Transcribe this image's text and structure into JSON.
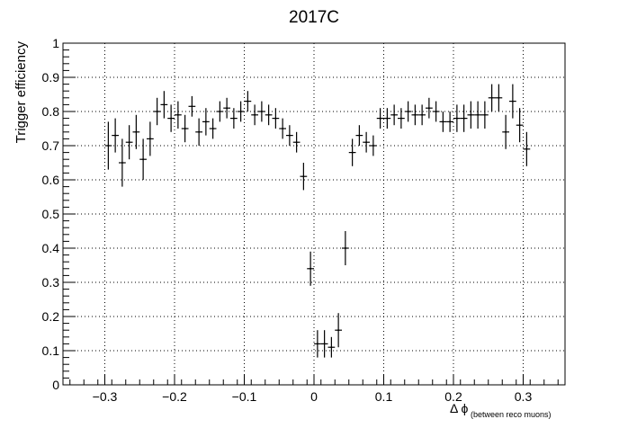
{
  "chart_data": {
    "type": "scatter",
    "title": "2017C",
    "xlabel": "Δ ϕ",
    "xlabel_sub": "(between reco muons)",
    "ylabel": "Trigger efficiency",
    "xlim": [
      -0.36,
      0.36
    ],
    "ylim": [
      0,
      1
    ],
    "grid": true,
    "x_ticks": [
      -0.3,
      -0.2,
      -0.1,
      0,
      0.1,
      0.2,
      0.3
    ],
    "x_tick_labels": [
      "−0.3",
      "−0.2",
      "−0.1",
      "0",
      "0.1",
      "0.2",
      "0.3"
    ],
    "y_ticks": [
      0,
      0.1,
      0.2,
      0.3,
      0.4,
      0.5,
      0.6,
      0.7,
      0.8,
      0.9,
      1
    ],
    "y_tick_labels": [
      "0",
      "0.1",
      "0.2",
      "0.3",
      "0.4",
      "0.5",
      "0.6",
      "0.7",
      "0.8",
      "0.9",
      "1"
    ],
    "bin_half_width": 0.005,
    "points": [
      {
        "x": -0.295,
        "y": 0.7,
        "err": 0.07
      },
      {
        "x": -0.285,
        "y": 0.73,
        "err": 0.05
      },
      {
        "x": -0.275,
        "y": 0.65,
        "err": 0.07
      },
      {
        "x": -0.265,
        "y": 0.71,
        "err": 0.05
      },
      {
        "x": -0.255,
        "y": 0.74,
        "err": 0.05
      },
      {
        "x": -0.245,
        "y": 0.66,
        "err": 0.06
      },
      {
        "x": -0.235,
        "y": 0.72,
        "err": 0.05
      },
      {
        "x": -0.225,
        "y": 0.8,
        "err": 0.04
      },
      {
        "x": -0.215,
        "y": 0.82,
        "err": 0.04
      },
      {
        "x": -0.205,
        "y": 0.78,
        "err": 0.04
      },
      {
        "x": -0.195,
        "y": 0.79,
        "err": 0.04
      },
      {
        "x": -0.185,
        "y": 0.75,
        "err": 0.04
      },
      {
        "x": -0.175,
        "y": 0.815,
        "err": 0.03
      },
      {
        "x": -0.165,
        "y": 0.74,
        "err": 0.04
      },
      {
        "x": -0.155,
        "y": 0.77,
        "err": 0.04
      },
      {
        "x": -0.145,
        "y": 0.75,
        "err": 0.03
      },
      {
        "x": -0.135,
        "y": 0.8,
        "err": 0.03
      },
      {
        "x": -0.125,
        "y": 0.81,
        "err": 0.03
      },
      {
        "x": -0.115,
        "y": 0.78,
        "err": 0.03
      },
      {
        "x": -0.105,
        "y": 0.8,
        "err": 0.03
      },
      {
        "x": -0.095,
        "y": 0.83,
        "err": 0.03
      },
      {
        "x": -0.085,
        "y": 0.79,
        "err": 0.03
      },
      {
        "x": -0.075,
        "y": 0.8,
        "err": 0.03
      },
      {
        "x": -0.065,
        "y": 0.79,
        "err": 0.03
      },
      {
        "x": -0.055,
        "y": 0.78,
        "err": 0.03
      },
      {
        "x": -0.045,
        "y": 0.75,
        "err": 0.03
      },
      {
        "x": -0.035,
        "y": 0.73,
        "err": 0.03
      },
      {
        "x": -0.025,
        "y": 0.71,
        "err": 0.03
      },
      {
        "x": -0.015,
        "y": 0.61,
        "err": 0.04
      },
      {
        "x": -0.005,
        "y": 0.34,
        "err": 0.05
      },
      {
        "x": 0.005,
        "y": 0.12,
        "err": 0.04
      },
      {
        "x": 0.015,
        "y": 0.12,
        "err": 0.04
      },
      {
        "x": 0.025,
        "y": 0.11,
        "err": 0.03
      },
      {
        "x": 0.035,
        "y": 0.16,
        "err": 0.05
      },
      {
        "x": 0.045,
        "y": 0.4,
        "err": 0.05
      },
      {
        "x": 0.055,
        "y": 0.68,
        "err": 0.04
      },
      {
        "x": 0.065,
        "y": 0.73,
        "err": 0.03
      },
      {
        "x": 0.075,
        "y": 0.71,
        "err": 0.03
      },
      {
        "x": 0.085,
        "y": 0.7,
        "err": 0.03
      },
      {
        "x": 0.095,
        "y": 0.78,
        "err": 0.03
      },
      {
        "x": 0.105,
        "y": 0.78,
        "err": 0.03
      },
      {
        "x": 0.115,
        "y": 0.79,
        "err": 0.03
      },
      {
        "x": 0.125,
        "y": 0.78,
        "err": 0.03
      },
      {
        "x": 0.135,
        "y": 0.8,
        "err": 0.03
      },
      {
        "x": 0.145,
        "y": 0.79,
        "err": 0.03
      },
      {
        "x": 0.155,
        "y": 0.79,
        "err": 0.03
      },
      {
        "x": 0.165,
        "y": 0.81,
        "err": 0.03
      },
      {
        "x": 0.175,
        "y": 0.8,
        "err": 0.03
      },
      {
        "x": 0.185,
        "y": 0.77,
        "err": 0.03
      },
      {
        "x": 0.195,
        "y": 0.77,
        "err": 0.03
      },
      {
        "x": 0.205,
        "y": 0.78,
        "err": 0.04
      },
      {
        "x": 0.215,
        "y": 0.78,
        "err": 0.04
      },
      {
        "x": 0.225,
        "y": 0.79,
        "err": 0.04
      },
      {
        "x": 0.235,
        "y": 0.79,
        "err": 0.04
      },
      {
        "x": 0.245,
        "y": 0.79,
        "err": 0.04
      },
      {
        "x": 0.255,
        "y": 0.84,
        "err": 0.04
      },
      {
        "x": 0.265,
        "y": 0.84,
        "err": 0.04
      },
      {
        "x": 0.275,
        "y": 0.74,
        "err": 0.05
      },
      {
        "x": 0.285,
        "y": 0.83,
        "err": 0.05
      },
      {
        "x": 0.295,
        "y": 0.76,
        "err": 0.05
      },
      {
        "x": 0.305,
        "y": 0.69,
        "err": 0.05
      }
    ]
  }
}
